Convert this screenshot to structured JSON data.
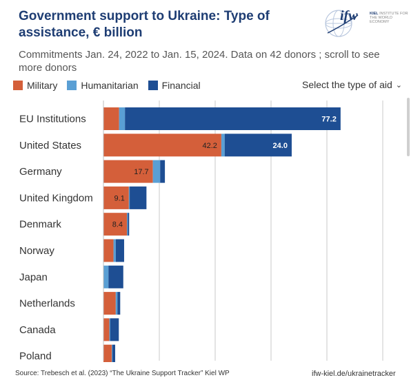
{
  "header": {
    "title": "Government support to Ukraine:  Type of assistance, € billion",
    "subtitle": "Commitments Jan. 24, 2022 to Jan. 15, 2024. Data on 42 donors ; scroll to see more donors"
  },
  "logo": {
    "word": "ifw",
    "line1": "KIEL",
    "line2": "INSTITUTE FOR",
    "line3": "THE WORLD ECONOMY"
  },
  "dropdown": {
    "label": "Select the type of aid"
  },
  "footer": {
    "source": "Source: Trebesch et al. (2023) “The Ukraine Support Tracker” Kiel WP",
    "link": "ifw-kiel.de/ukrainetracker"
  },
  "colors": {
    "military": "#d45f3a",
    "humanitarian": "#5a9fd4",
    "financial": "#1e4e93"
  },
  "chart_data": {
    "type": "bar",
    "orientation": "horizontal",
    "stacked": true,
    "categories": [
      "EU Institutions",
      "United States",
      "Germany",
      "United Kingdom",
      "Denmark",
      "Norway",
      "Japan",
      "Netherlands",
      "Canada",
      "Poland"
    ],
    "series": [
      {
        "name": "Military",
        "color": "#d45f3a",
        "values": [
          5.6,
          42.2,
          17.7,
          9.1,
          8.4,
          3.6,
          0.0,
          4.4,
          2.1,
          3.0
        ]
      },
      {
        "name": "Humanitarian",
        "color": "#5a9fd4",
        "values": [
          2.1,
          1.2,
          2.6,
          0.3,
          0.3,
          0.8,
          1.8,
          0.6,
          0.3,
          0.2
        ]
      },
      {
        "name": "Financial",
        "color": "#1e4e93",
        "values": [
          77.2,
          24.0,
          1.7,
          6.0,
          0.5,
          3.0,
          5.3,
          1.0,
          3.1,
          1.0
        ]
      }
    ],
    "data_labels": [
      {
        "category": "EU Institutions",
        "series": "Financial",
        "text": "77.2"
      },
      {
        "category": "United States",
        "series": "Military",
        "text": "42.2"
      },
      {
        "category": "United States",
        "series": "Financial",
        "text": "24.0"
      },
      {
        "category": "Germany",
        "series": "Military",
        "text": "17.7"
      },
      {
        "category": "United Kingdom",
        "series": "Military",
        "text": "9.1"
      },
      {
        "category": "Denmark",
        "series": "Military",
        "text": "8.4"
      }
    ],
    "xlim": [
      0,
      110
    ],
    "gridlines_at": [
      20,
      40,
      60,
      80,
      100
    ],
    "grid": true,
    "legend_position": "top-left",
    "xlabel": "",
    "ylabel": ""
  }
}
